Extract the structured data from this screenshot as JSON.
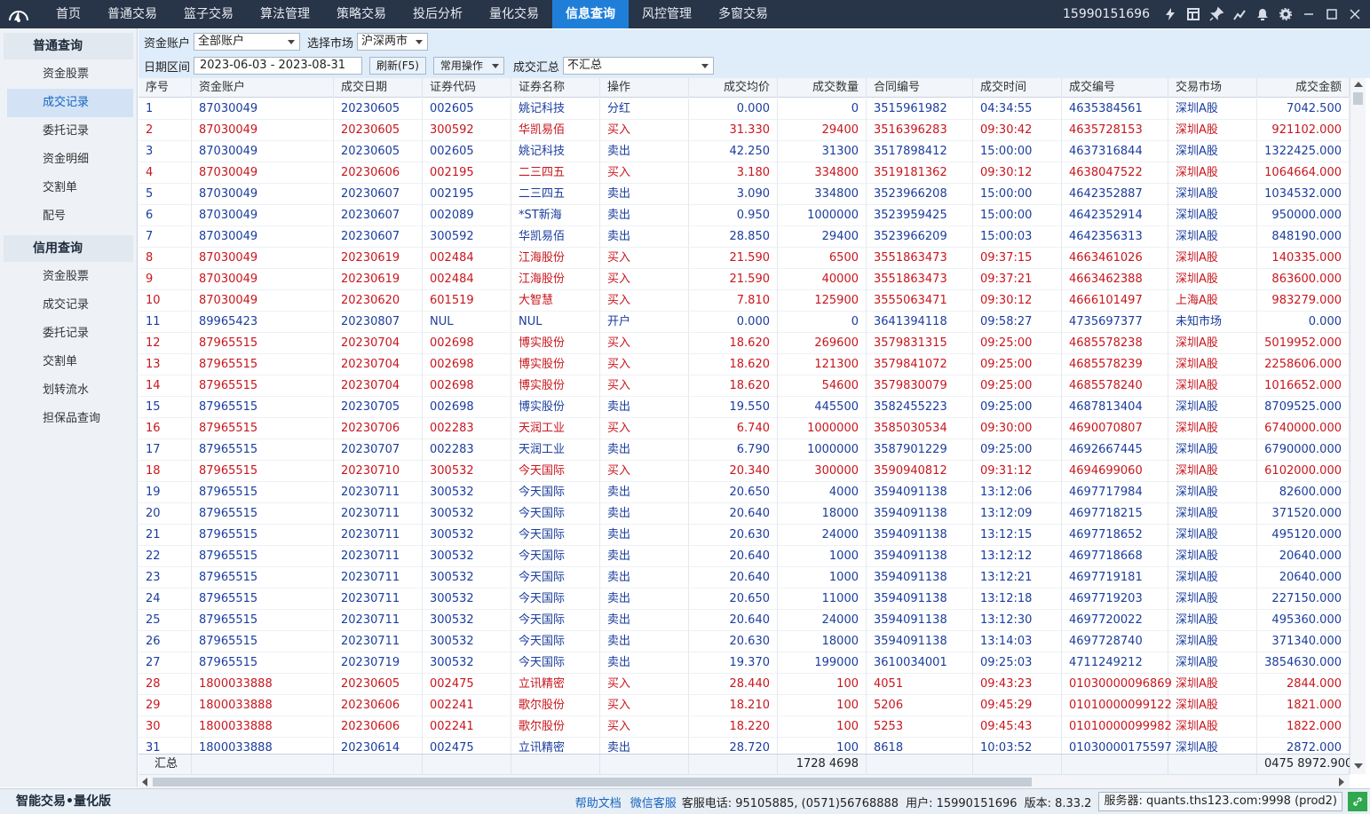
{
  "nav": {
    "items": [
      "首页",
      "普通交易",
      "篮子交易",
      "算法管理",
      "策略交易",
      "投后分析",
      "量化交易",
      "信息查询",
      "风控管理",
      "多窗交易"
    ],
    "active_index": 7,
    "user_phone": "15990151696"
  },
  "sidebar": {
    "group1_title": "普通查询",
    "group1_items": [
      "资金股票",
      "成交记录",
      "委托记录",
      "资金明细",
      "交割单",
      "配号"
    ],
    "group2_title": "信用查询",
    "group2_items": [
      "资金股票",
      "成交记录",
      "委托记录",
      "交割单",
      "划转流水",
      "担保品查询"
    ],
    "active_item": "成交记录"
  },
  "filters": {
    "account_label": "资金账户",
    "account_value": "全部账户",
    "market_label": "选择市场",
    "market_value": "沪深两市",
    "date_label": "日期区间",
    "date_range": "2023-06-03  -  2023-08-31",
    "refresh_label": "刷新(F5)",
    "common_ops_label": "常用操作",
    "summary_label": "成交汇总",
    "summary_value": "不汇总"
  },
  "table": {
    "columns": [
      "序号",
      "资金账户",
      "成交日期",
      "证券代码",
      "证券名称",
      "操作",
      "成交均价",
      "成交数量",
      "合同编号",
      "成交时间",
      "成交编号",
      "交易市场",
      "成交金额"
    ],
    "rows": [
      [
        "1",
        "87030049",
        "20230605",
        "002605",
        "姚记科技",
        "分红",
        "0.000",
        "0",
        "3515961982",
        "04:34:55",
        "4635384561",
        "深圳A股",
        "7042.500"
      ],
      [
        "2",
        "87030049",
        "20230605",
        "300592",
        "华凯易佰",
        "买入",
        "31.330",
        "29400",
        "3516396283",
        "09:30:42",
        "4635728153",
        "深圳A股",
        "921102.000"
      ],
      [
        "3",
        "87030049",
        "20230605",
        "002605",
        "姚记科技",
        "卖出",
        "42.250",
        "31300",
        "3517898412",
        "15:00:00",
        "4637316844",
        "深圳A股",
        "1322425.000"
      ],
      [
        "4",
        "87030049",
        "20230606",
        "002195",
        "二三四五",
        "买入",
        "3.180",
        "334800",
        "3519181362",
        "09:30:12",
        "4638047522",
        "深圳A股",
        "1064664.000"
      ],
      [
        "5",
        "87030049",
        "20230607",
        "002195",
        "二三四五",
        "卖出",
        "3.090",
        "334800",
        "3523966208",
        "15:00:00",
        "4642352887",
        "深圳A股",
        "1034532.000"
      ],
      [
        "6",
        "87030049",
        "20230607",
        "002089",
        "*ST新海",
        "卖出",
        "0.950",
        "1000000",
        "3523959425",
        "15:00:00",
        "4642352914",
        "深圳A股",
        "950000.000"
      ],
      [
        "7",
        "87030049",
        "20230607",
        "300592",
        "华凯易佰",
        "卖出",
        "28.850",
        "29400",
        "3523966209",
        "15:00:03",
        "4642356313",
        "深圳A股",
        "848190.000"
      ],
      [
        "8",
        "87030049",
        "20230619",
        "002484",
        "江海股份",
        "买入",
        "21.590",
        "6500",
        "3551863473",
        "09:37:15",
        "4663461026",
        "深圳A股",
        "140335.000"
      ],
      [
        "9",
        "87030049",
        "20230619",
        "002484",
        "江海股份",
        "买入",
        "21.590",
        "40000",
        "3551863473",
        "09:37:21",
        "4663462388",
        "深圳A股",
        "863600.000"
      ],
      [
        "10",
        "87030049",
        "20230620",
        "601519",
        "大智慧",
        "买入",
        "7.810",
        "125900",
        "3555063471",
        "09:30:12",
        "4666101497",
        "上海A股",
        "983279.000"
      ],
      [
        "11",
        "89965423",
        "20230807",
        "NUL",
        "NUL",
        "开户",
        "0.000",
        "0",
        "3641394118",
        "09:58:27",
        "4735697377",
        "未知市场",
        "0.000"
      ],
      [
        "12",
        "87965515",
        "20230704",
        "002698",
        "博实股份",
        "买入",
        "18.620",
        "269600",
        "3579831315",
        "09:25:00",
        "4685578238",
        "深圳A股",
        "5019952.000"
      ],
      [
        "13",
        "87965515",
        "20230704",
        "002698",
        "博实股份",
        "买入",
        "18.620",
        "121300",
        "3579841072",
        "09:25:00",
        "4685578239",
        "深圳A股",
        "2258606.000"
      ],
      [
        "14",
        "87965515",
        "20230704",
        "002698",
        "博实股份",
        "买入",
        "18.620",
        "54600",
        "3579830079",
        "09:25:00",
        "4685578240",
        "深圳A股",
        "1016652.000"
      ],
      [
        "15",
        "87965515",
        "20230705",
        "002698",
        "博实股份",
        "卖出",
        "19.550",
        "445500",
        "3582455223",
        "09:25:00",
        "4687813404",
        "深圳A股",
        "8709525.000"
      ],
      [
        "16",
        "87965515",
        "20230706",
        "002283",
        "天润工业",
        "买入",
        "6.740",
        "1000000",
        "3585030534",
        "09:30:00",
        "4690070807",
        "深圳A股",
        "6740000.000"
      ],
      [
        "17",
        "87965515",
        "20230707",
        "002283",
        "天润工业",
        "卖出",
        "6.790",
        "1000000",
        "3587901229",
        "09:25:00",
        "4692667445",
        "深圳A股",
        "6790000.000"
      ],
      [
        "18",
        "87965515",
        "20230710",
        "300532",
        "今天国际",
        "买入",
        "20.340",
        "300000",
        "3590940812",
        "09:31:12",
        "4694699060",
        "深圳A股",
        "6102000.000"
      ],
      [
        "19",
        "87965515",
        "20230711",
        "300532",
        "今天国际",
        "卖出",
        "20.650",
        "4000",
        "3594091138",
        "13:12:06",
        "4697717984",
        "深圳A股",
        "82600.000"
      ],
      [
        "20",
        "87965515",
        "20230711",
        "300532",
        "今天国际",
        "卖出",
        "20.640",
        "18000",
        "3594091138",
        "13:12:09",
        "4697718215",
        "深圳A股",
        "371520.000"
      ],
      [
        "21",
        "87965515",
        "20230711",
        "300532",
        "今天国际",
        "卖出",
        "20.630",
        "24000",
        "3594091138",
        "13:12:15",
        "4697718652",
        "深圳A股",
        "495120.000"
      ],
      [
        "22",
        "87965515",
        "20230711",
        "300532",
        "今天国际",
        "卖出",
        "20.640",
        "1000",
        "3594091138",
        "13:12:12",
        "4697718668",
        "深圳A股",
        "20640.000"
      ],
      [
        "23",
        "87965515",
        "20230711",
        "300532",
        "今天国际",
        "卖出",
        "20.640",
        "1000",
        "3594091138",
        "13:12:21",
        "4697719181",
        "深圳A股",
        "20640.000"
      ],
      [
        "24",
        "87965515",
        "20230711",
        "300532",
        "今天国际",
        "卖出",
        "20.650",
        "11000",
        "3594091138",
        "13:12:18",
        "4697719203",
        "深圳A股",
        "227150.000"
      ],
      [
        "25",
        "87965515",
        "20230711",
        "300532",
        "今天国际",
        "卖出",
        "20.640",
        "24000",
        "3594091138",
        "13:12:30",
        "4697720022",
        "深圳A股",
        "495360.000"
      ],
      [
        "26",
        "87965515",
        "20230711",
        "300532",
        "今天国际",
        "卖出",
        "20.630",
        "18000",
        "3594091138",
        "13:14:03",
        "4697728740",
        "深圳A股",
        "371340.000"
      ],
      [
        "27",
        "87965515",
        "20230719",
        "300532",
        "今天国际",
        "卖出",
        "19.370",
        "199000",
        "3610034001",
        "09:25:03",
        "4711249212",
        "深圳A股",
        "3854630.000"
      ],
      [
        "28",
        "1800033888",
        "20230605",
        "002475",
        "立讯精密",
        "买入",
        "28.440",
        "100",
        "4051",
        "09:43:23",
        "01030000096869",
        "深圳A股",
        "2844.000"
      ],
      [
        "29",
        "1800033888",
        "20230606",
        "002241",
        "歌尔股份",
        "买入",
        "18.210",
        "100",
        "5206",
        "09:45:29",
        "01010000099122",
        "深圳A股",
        "1821.000"
      ],
      [
        "30",
        "1800033888",
        "20230606",
        "002241",
        "歌尔股份",
        "买入",
        "18.220",
        "100",
        "5253",
        "09:45:43",
        "01010000099982",
        "深圳A股",
        "1822.000"
      ],
      [
        "31",
        "1800033888",
        "20230614",
        "002475",
        "立讯精密",
        "卖出",
        "28.720",
        "100",
        "8618",
        "10:03:52",
        "01030000175597",
        "深圳A股",
        "2872.000"
      ]
    ],
    "footer": {
      "label": "汇总",
      "total_qty": "1728 4698",
      "total_amount": "0475 8972.900"
    }
  },
  "status": {
    "brand": "智能交易•量化版",
    "help_label": "帮助文档",
    "wechat_label": "微信客服",
    "hotline": "客服电话: 95105885, (0571)56768888",
    "user": "用户: 15990151696",
    "version": "版本: 8.33.2",
    "server": "服务器: quants.ths123.com:9998  (prod2)"
  },
  "colors": {
    "nav_bg": "#283448",
    "nav_active": "#1f7fd8",
    "buy_color": "#c8161d",
    "sell_color": "#1a3d9e",
    "filter_bg": "#dfecf9",
    "connected_green": "#2fa84f"
  },
  "icons": [
    "logo-icon",
    "lightning-icon",
    "layout-icon",
    "pin-icon",
    "chart-icon",
    "bell-icon",
    "gear-icon",
    "minimize-icon",
    "maximize-icon",
    "close-icon",
    "link-icon"
  ]
}
